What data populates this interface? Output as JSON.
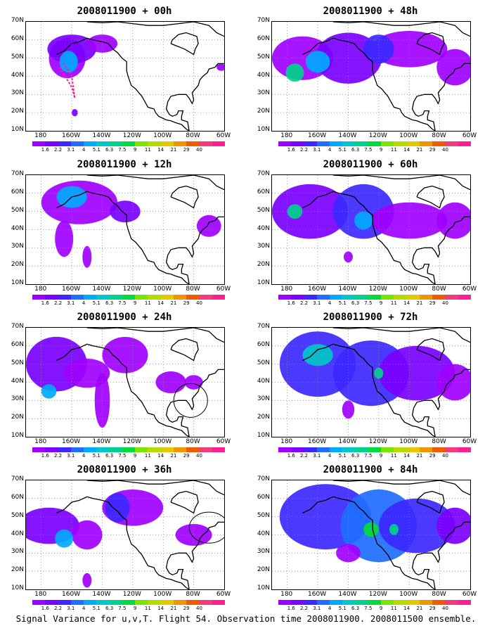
{
  "panels": [
    {
      "title": "2008011900 + 00h"
    },
    {
      "title": "2008011900 + 48h"
    },
    {
      "title": "2008011900 + 12h"
    },
    {
      "title": "2008011900 + 60h"
    },
    {
      "title": "2008011900 + 24h"
    },
    {
      "title": "2008011900 + 72h"
    },
    {
      "title": "2008011900 + 36h"
    },
    {
      "title": "2008011900 + 84h"
    }
  ],
  "lat_labels": [
    "70N",
    "60N",
    "50N",
    "40N",
    "30N",
    "20N",
    "10N"
  ],
  "lon_labels": [
    "180",
    "160W",
    "140W",
    "120W",
    "100W",
    "80W",
    "60W"
  ],
  "colorbar_labels": [
    "1.6",
    "2.2",
    "3.1",
    "4",
    "5.1",
    "6.3",
    "7.5",
    "9",
    "11",
    "14",
    "21",
    "29",
    "40"
  ],
  "colorbar_colors": [
    "#a000ff",
    "#7a00ff",
    "#3c28ff",
    "#1e6eff",
    "#00aaff",
    "#00c8c8",
    "#00d28c",
    "#00dc3c",
    "#78e600",
    "#b4dc00",
    "#e6c800",
    "#f09600",
    "#f05a00",
    "#f03c78",
    "#ff1e96"
  ],
  "caption": "Signal Variance for u,v,T. Flight 54. Observation time 2008011900. 2008011500 ensemble."
}
